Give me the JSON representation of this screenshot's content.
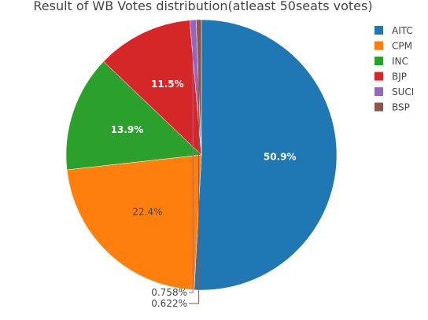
{
  "chart_data": {
    "type": "pie",
    "title": "Result of WB Votes distribution(atleast 50seats votes)",
    "categories": [
      "AITC",
      "CPM",
      "INC",
      "BJP",
      "SUCI",
      "BSP"
    ],
    "values": [
      50.9,
      22.4,
      13.9,
      11.5,
      0.758,
      0.622
    ],
    "labels": [
      "50.9%",
      "22.4%",
      "13.9%",
      "11.5%",
      "0.758%",
      "0.622%"
    ],
    "colors": [
      "#1f77b4",
      "#ff7f0e",
      "#2ca02c",
      "#d62728",
      "#9467bd",
      "#8c564b"
    ],
    "label_colors": [
      "#ffffff",
      "#444444",
      "#ffffff",
      "#ffffff",
      "#444444",
      "#444444"
    ],
    "legend_position": "top-right",
    "direction": "clockwise",
    "start_angle_deg": 90
  }
}
